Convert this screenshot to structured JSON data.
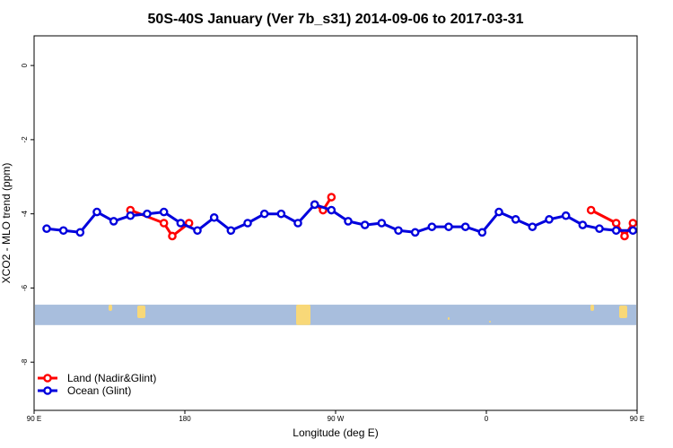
{
  "chart_data": {
    "type": "line",
    "title": "50S-40S January (Ver 7b_s31)   2014-09-06 to 2017-03-31",
    "xlabel": "Longitude (deg E)",
    "ylabel": "XCO2 - MLO trend (ppm)",
    "xlim": [
      90,
      450
    ],
    "ylim": [
      -9.3,
      0.8
    ],
    "x_ticks": [
      {
        "value": 90,
        "label": "90 E"
      },
      {
        "value": 180,
        "label": "180"
      },
      {
        "value": 270,
        "label": "90 W"
      },
      {
        "value": 360,
        "label": "0"
      },
      {
        "value": 450,
        "label": "90 E"
      }
    ],
    "y_ticks": [
      {
        "value": 0,
        "label": "0"
      },
      {
        "value": -2,
        "label": "-2"
      },
      {
        "value": -4,
        "label": "-4"
      },
      {
        "value": -6,
        "label": "-6"
      },
      {
        "value": -8,
        "label": "-8"
      }
    ],
    "series": [
      {
        "name": "Land (Nadir&Glint)",
        "color": "#ff0000",
        "segments": [
          {
            "x": [
              147.5,
              167.5,
              172.5,
              182.5
            ],
            "y": [
              -3.9,
              -4.25,
              -4.6,
              -4.25
            ]
          },
          {
            "x": [
              257.5,
              262.5,
              267.5
            ],
            "y": [
              -3.75,
              -3.9,
              -3.55
            ]
          },
          {
            "x": [
              422.5,
              437.5,
              442.5,
              447.5
            ],
            "y": [
              -3.9,
              -4.25,
              -4.6,
              -4.25
            ]
          }
        ]
      },
      {
        "name": "Ocean (Glint)",
        "color": "#0000dd",
        "segments": [
          {
            "x": [
              97.5,
              107.5,
              117.5,
              127.5,
              137.5,
              147.5,
              157.5,
              167.5,
              177.5,
              187.5,
              197.5,
              207.5,
              217.5,
              227.5,
              237.5,
              247.5,
              257.5,
              267.5,
              277.5,
              287.5,
              297.5,
              307.5,
              317.5,
              327.5,
              337.5,
              347.5,
              357.5,
              367.5,
              377.5,
              387.5,
              397.5,
              407.5,
              417.5,
              427.5,
              437.5,
              447.5
            ],
            "y": [
              -4.4,
              -4.45,
              -4.5,
              -3.95,
              -4.2,
              -4.05,
              -4.0,
              -3.95,
              -4.25,
              -4.45,
              -4.1,
              -4.45,
              -4.25,
              -4.0,
              -4.0,
              -4.25,
              -3.75,
              -3.9,
              -4.2,
              -4.3,
              -4.25,
              -4.45,
              -4.5,
              -4.35,
              -4.35,
              -4.35,
              -4.5,
              -3.95,
              -4.15,
              -4.35,
              -4.15,
              -4.05,
              -4.3,
              -4.4,
              -4.45,
              -4.45
            ]
          }
        ]
      }
    ],
    "legend": {
      "placement": "bottom-left"
    },
    "grid": false,
    "band": {
      "y_range": [
        -6.45,
        -7.0
      ],
      "color": "#a8bedd",
      "land_color": "#f8d878"
    }
  }
}
